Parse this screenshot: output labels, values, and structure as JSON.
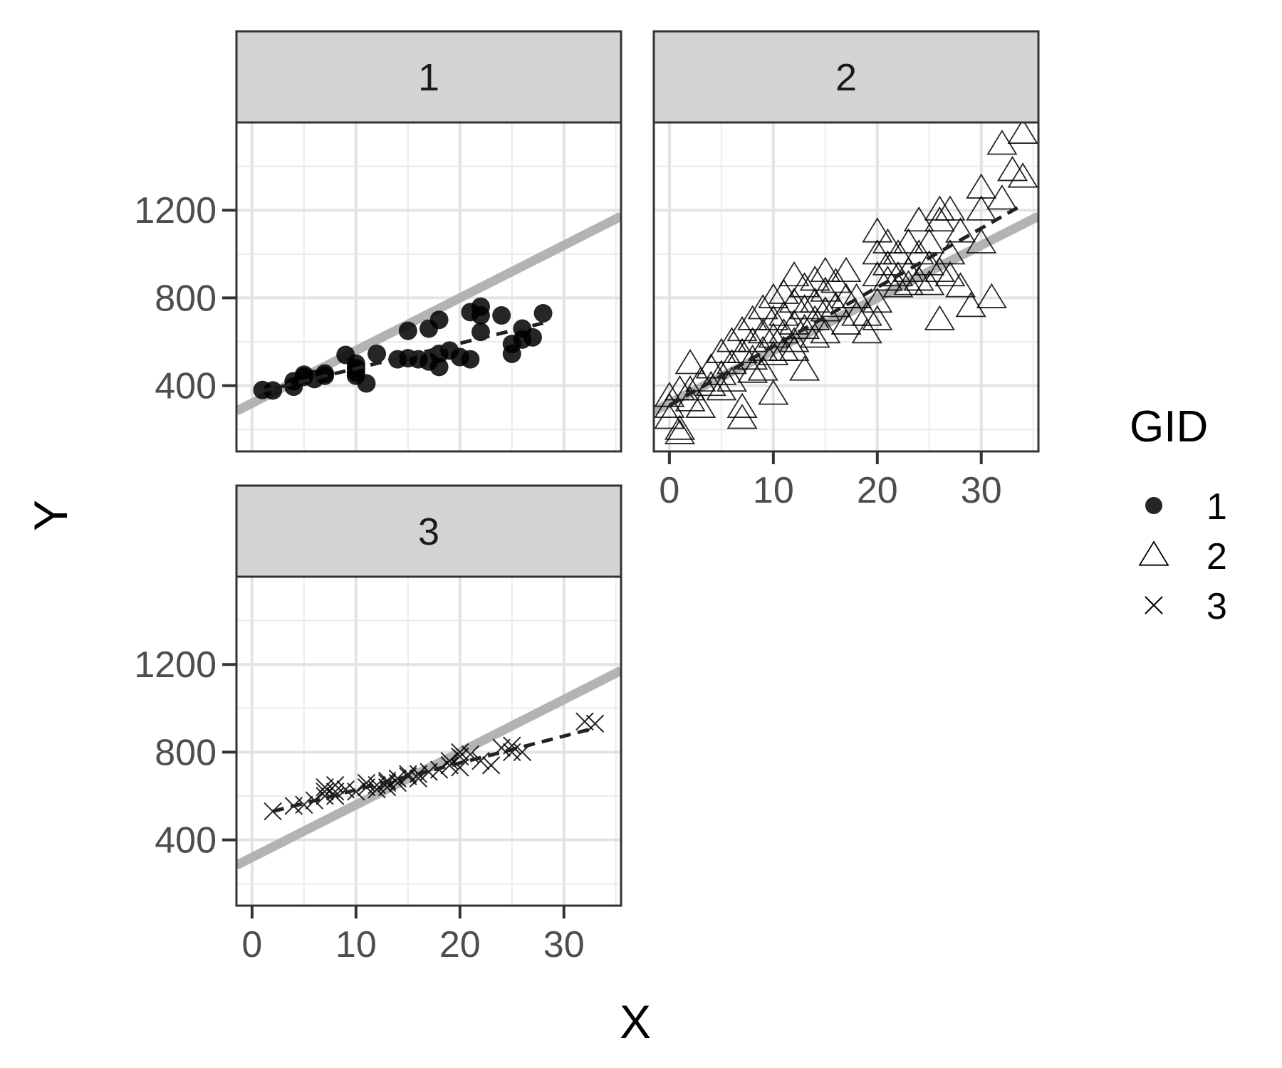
{
  "chart_data": {
    "type": "scatter",
    "xlabel": "X",
    "ylabel": "Y",
    "xlim": [
      -1.5,
      35.5
    ],
    "ylim": [
      100,
      1600
    ],
    "x_ticks": [
      0,
      10,
      20,
      30
    ],
    "y_ticks": [
      400,
      800,
      1200
    ],
    "grid": true,
    "legend": {
      "title": "GID",
      "position": "right"
    },
    "reference_line": {
      "intercept": 320,
      "slope": 24,
      "color": "#b3b3b3"
    },
    "panels": [
      {
        "label": "1",
        "marker": "circle",
        "fit": [
          [
            1,
            375
          ],
          [
            28,
            685
          ]
        ],
        "points": [
          [
            1,
            380
          ],
          [
            2,
            378
          ],
          [
            4,
            395
          ],
          [
            4,
            420
          ],
          [
            5,
            440
          ],
          [
            5,
            450
          ],
          [
            6,
            430
          ],
          [
            7,
            445
          ],
          [
            7,
            455
          ],
          [
            9,
            540
          ],
          [
            10,
            500
          ],
          [
            10,
            480
          ],
          [
            10,
            460
          ],
          [
            10,
            445
          ],
          [
            11,
            410
          ],
          [
            12,
            545
          ],
          [
            14,
            520
          ],
          [
            15,
            650
          ],
          [
            15,
            525
          ],
          [
            16,
            520
          ],
          [
            17,
            660
          ],
          [
            17,
            510
          ],
          [
            18,
            545
          ],
          [
            18,
            700
          ],
          [
            18,
            485
          ],
          [
            19,
            560
          ],
          [
            20,
            530
          ],
          [
            21,
            520
          ],
          [
            21,
            735
          ],
          [
            22,
            760
          ],
          [
            22,
            720
          ],
          [
            22,
            645
          ],
          [
            24,
            720
          ],
          [
            25,
            590
          ],
          [
            25,
            545
          ],
          [
            26,
            660
          ],
          [
            26,
            610
          ],
          [
            27,
            620
          ],
          [
            28,
            730
          ]
        ]
      },
      {
        "label": "2",
        "marker": "triangle",
        "fit": [
          [
            0,
            310
          ],
          [
            34,
            1225
          ]
        ],
        "points": [
          [
            0,
            350
          ],
          [
            0,
            300
          ],
          [
            0,
            250
          ],
          [
            1,
            380
          ],
          [
            1,
            200
          ],
          [
            1,
            180
          ],
          [
            2,
            500
          ],
          [
            2,
            380
          ],
          [
            2,
            330
          ],
          [
            3,
            420
          ],
          [
            3,
            300
          ],
          [
            4,
            480
          ],
          [
            4,
            400
          ],
          [
            5,
            550
          ],
          [
            5,
            450
          ],
          [
            5,
            380
          ],
          [
            6,
            600
          ],
          [
            6,
            500
          ],
          [
            6,
            420
          ],
          [
            7,
            650
          ],
          [
            7,
            550
          ],
          [
            7,
            300
          ],
          [
            7,
            250
          ],
          [
            8,
            700
          ],
          [
            8,
            600
          ],
          [
            8,
            520
          ],
          [
            8,
            460
          ],
          [
            9,
            750
          ],
          [
            9,
            640
          ],
          [
            9,
            560
          ],
          [
            9,
            470
          ],
          [
            10,
            800
          ],
          [
            10,
            700
          ],
          [
            10,
            620
          ],
          [
            10,
            540
          ],
          [
            10,
            360
          ],
          [
            11,
            820
          ],
          [
            11,
            720
          ],
          [
            11,
            640
          ],
          [
            11,
            560
          ],
          [
            12,
            900
          ],
          [
            12,
            780
          ],
          [
            12,
            680
          ],
          [
            12,
            600
          ],
          [
            12,
            560
          ],
          [
            13,
            850
          ],
          [
            13,
            750
          ],
          [
            13,
            660
          ],
          [
            13,
            470
          ],
          [
            14,
            880
          ],
          [
            14,
            780
          ],
          [
            14,
            700
          ],
          [
            14,
            620
          ],
          [
            15,
            920
          ],
          [
            15,
            830
          ],
          [
            15,
            740
          ],
          [
            15,
            640
          ],
          [
            16,
            870
          ],
          [
            16,
            760
          ],
          [
            17,
            920
          ],
          [
            17,
            800
          ],
          [
            17,
            680
          ],
          [
            18,
            800
          ],
          [
            18,
            720
          ],
          [
            19,
            720
          ],
          [
            19,
            640
          ],
          [
            20,
            1100
          ],
          [
            20,
            1000
          ],
          [
            20,
            900
          ],
          [
            20,
            780
          ],
          [
            20,
            700
          ],
          [
            21,
            1050
          ],
          [
            21,
            950
          ],
          [
            21,
            880
          ],
          [
            22,
            1000
          ],
          [
            22,
            900
          ],
          [
            22,
            850
          ],
          [
            23,
            1050
          ],
          [
            23,
            920
          ],
          [
            23,
            860
          ],
          [
            24,
            1150
          ],
          [
            24,
            1000
          ],
          [
            24,
            880
          ],
          [
            25,
            1050
          ],
          [
            25,
            950
          ],
          [
            25,
            860
          ],
          [
            26,
            1200
          ],
          [
            26,
            1150
          ],
          [
            26,
            920
          ],
          [
            26,
            700
          ],
          [
            27,
            1200
          ],
          [
            27,
            1000
          ],
          [
            27,
            900
          ],
          [
            28,
            1100
          ],
          [
            28,
            850
          ],
          [
            29,
            760
          ],
          [
            30,
            1300
          ],
          [
            30,
            1200
          ],
          [
            30,
            1050
          ],
          [
            31,
            800
          ],
          [
            32,
            1500
          ],
          [
            32,
            1250
          ],
          [
            33,
            1380
          ],
          [
            34,
            1550
          ],
          [
            34,
            1350
          ]
        ]
      },
      {
        "label": "3",
        "marker": "x",
        "fit": [
          [
            2,
            530
          ],
          [
            33,
            910
          ]
        ],
        "points": [
          [
            2,
            530
          ],
          [
            4,
            555
          ],
          [
            5,
            560
          ],
          [
            6,
            580
          ],
          [
            7,
            600
          ],
          [
            7,
            620
          ],
          [
            7,
            640
          ],
          [
            8,
            600
          ],
          [
            8,
            620
          ],
          [
            8,
            650
          ],
          [
            9,
            630
          ],
          [
            10,
            620
          ],
          [
            11,
            640
          ],
          [
            11,
            660
          ],
          [
            12,
            630
          ],
          [
            12,
            650
          ],
          [
            13,
            660
          ],
          [
            13,
            670
          ],
          [
            13,
            640
          ],
          [
            14,
            680
          ],
          [
            14,
            660
          ],
          [
            15,
            690
          ],
          [
            15,
            700
          ],
          [
            16,
            700
          ],
          [
            16,
            680
          ],
          [
            17,
            710
          ],
          [
            18,
            720
          ],
          [
            19,
            740
          ],
          [
            19,
            760
          ],
          [
            20,
            780
          ],
          [
            20,
            800
          ],
          [
            20,
            730
          ],
          [
            21,
            790
          ],
          [
            22,
            760
          ],
          [
            23,
            740
          ],
          [
            24,
            820
          ],
          [
            25,
            800
          ],
          [
            25,
            830
          ],
          [
            26,
            800
          ],
          [
            32,
            940
          ],
          [
            33,
            930
          ]
        ]
      }
    ]
  }
}
